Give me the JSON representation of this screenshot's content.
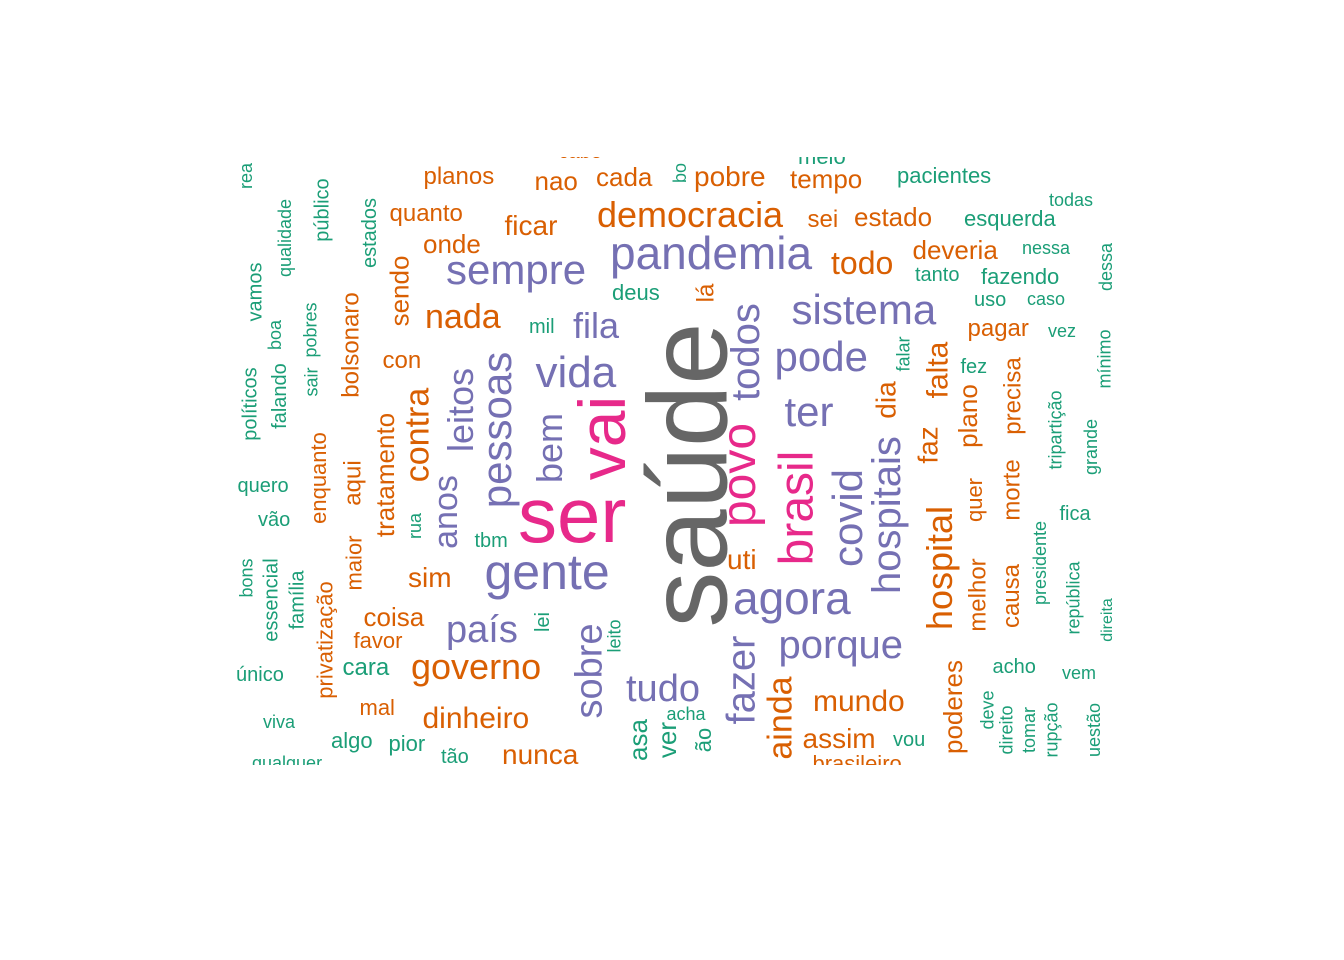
{
  "palette": {
    "gray": "#666666",
    "pink": "#e7298a",
    "purple": "#7570b3",
    "orange": "#d95f02",
    "teal": "#1b9e77"
  },
  "words": [
    {
      "text": "saúde",
      "color": "gray",
      "rank": 1
    },
    {
      "text": "ser",
      "color": "pink",
      "rank": 2
    },
    {
      "text": "vai",
      "color": "pink",
      "rank": 3
    },
    {
      "text": "povo",
      "color": "pink",
      "rank": 4
    },
    {
      "text": "brasil",
      "color": "pink",
      "rank": 5
    },
    {
      "text": "gente",
      "color": "purple",
      "rank": 6
    },
    {
      "text": "agora",
      "color": "purple",
      "rank": 7
    },
    {
      "text": "pandemia",
      "color": "purple",
      "rank": 8
    },
    {
      "text": "sempre",
      "color": "purple",
      "rank": 9
    },
    {
      "text": "pessoas",
      "color": "purple",
      "rank": 10
    },
    {
      "text": "vida",
      "color": "purple",
      "rank": 11
    },
    {
      "text": "sistema",
      "color": "purple",
      "rank": 12
    },
    {
      "text": "pode",
      "color": "purple",
      "rank": 13
    },
    {
      "text": "todos",
      "color": "purple",
      "rank": 14
    },
    {
      "text": "ter",
      "color": "purple",
      "rank": 15
    },
    {
      "text": "porque",
      "color": "purple",
      "rank": 16
    },
    {
      "text": "hospitais",
      "color": "purple",
      "rank": 17
    },
    {
      "text": "covid",
      "color": "purple",
      "rank": 18
    },
    {
      "text": "fazer",
      "color": "purple",
      "rank": 19
    },
    {
      "text": "sobre",
      "color": "purple",
      "rank": 20
    },
    {
      "text": "tudo",
      "color": "purple",
      "rank": 21
    },
    {
      "text": "país",
      "color": "purple",
      "rank": 22
    },
    {
      "text": "leitos",
      "color": "purple",
      "rank": 23
    },
    {
      "text": "anos",
      "color": "purple",
      "rank": 24
    },
    {
      "text": "fila",
      "color": "purple",
      "rank": 25
    },
    {
      "text": "bem",
      "color": "purple",
      "rank": 26
    },
    {
      "text": "democracia",
      "color": "orange",
      "rank": 27
    },
    {
      "text": "governo",
      "color": "orange",
      "rank": 28
    },
    {
      "text": "nada",
      "color": "orange",
      "rank": 29
    },
    {
      "text": "hospital",
      "color": "orange",
      "rank": 30
    },
    {
      "text": "ainda",
      "color": "orange",
      "rank": 31
    },
    {
      "text": "contra",
      "color": "orange",
      "rank": 32
    },
    {
      "text": "dinheiro",
      "color": "orange",
      "rank": 33
    },
    {
      "text": "mundo",
      "color": "orange",
      "rank": 34
    },
    {
      "text": "nunca",
      "color": "orange",
      "rank": 35
    },
    {
      "text": "todo",
      "color": "orange",
      "rank": 36
    },
    {
      "text": "falta",
      "color": "orange",
      "rank": 37
    },
    {
      "text": "faz",
      "color": "orange",
      "rank": 38
    },
    {
      "text": "dia",
      "color": "orange",
      "rank": 39
    },
    {
      "text": "ficar",
      "color": "orange",
      "rank": 40
    },
    {
      "text": "sim",
      "color": "orange",
      "rank": 41
    },
    {
      "text": "coisa",
      "color": "orange",
      "rank": 42
    },
    {
      "text": "pobre",
      "color": "orange",
      "rank": 43
    },
    {
      "text": "tempo",
      "color": "orange",
      "rank": 44
    },
    {
      "text": "cada",
      "color": "orange",
      "rank": 45
    },
    {
      "text": "nao",
      "color": "orange",
      "rank": 46
    },
    {
      "text": "planos",
      "color": "orange",
      "rank": 47
    },
    {
      "text": "estado",
      "color": "orange",
      "rank": 48
    },
    {
      "text": "sei",
      "color": "orange",
      "rank": 49
    },
    {
      "text": "deveria",
      "color": "orange",
      "rank": 50
    },
    {
      "text": "pagar",
      "color": "orange",
      "rank": 51
    },
    {
      "text": "plano",
      "color": "orange",
      "rank": 52
    },
    {
      "text": "precisa",
      "color": "orange",
      "rank": 53
    },
    {
      "text": "morte",
      "color": "orange",
      "rank": 54
    },
    {
      "text": "causa",
      "color": "orange",
      "rank": 55
    },
    {
      "text": "melhor",
      "color": "orange",
      "rank": 56
    },
    {
      "text": "quer",
      "color": "orange",
      "rank": 57
    },
    {
      "text": "poderes",
      "color": "orange",
      "rank": 58
    },
    {
      "text": "assim",
      "color": "orange",
      "rank": 59
    },
    {
      "text": "uti",
      "color": "orange",
      "rank": 60
    },
    {
      "text": "onde",
      "color": "orange",
      "rank": 61
    },
    {
      "text": "quanto",
      "color": "orange",
      "rank": 62
    },
    {
      "text": "sendo",
      "color": "orange",
      "rank": 63
    },
    {
      "text": "con",
      "color": "orange",
      "rank": 64
    },
    {
      "text": "tratamento",
      "color": "orange",
      "rank": 65
    },
    {
      "text": "bolsonaro",
      "color": "orange",
      "rank": 66
    },
    {
      "text": "aqui",
      "color": "orange",
      "rank": 67
    },
    {
      "text": "maior",
      "color": "orange",
      "rank": 68
    },
    {
      "text": "enquanto",
      "color": "orange",
      "rank": 69
    },
    {
      "text": "privatização",
      "color": "orange",
      "rank": 70
    },
    {
      "text": "favor",
      "color": "orange",
      "rank": 71
    },
    {
      "text": "mal",
      "color": "orange",
      "rank": 72
    },
    {
      "text": "lá",
      "color": "orange",
      "rank": 73
    },
    {
      "text": "pacientes",
      "color": "teal",
      "rank": 74
    },
    {
      "text": "esquerda",
      "color": "teal",
      "rank": 75
    },
    {
      "text": "todas",
      "color": "teal",
      "rank": 76
    },
    {
      "text": "nessa",
      "color": "teal",
      "rank": 77
    },
    {
      "text": "fazendo",
      "color": "teal",
      "rank": 78
    },
    {
      "text": "tanto",
      "color": "teal",
      "rank": 79
    },
    {
      "text": "uso",
      "color": "teal",
      "rank": 80
    },
    {
      "text": "caso",
      "color": "teal",
      "rank": 81
    },
    {
      "text": "vez",
      "color": "teal",
      "rank": 82
    },
    {
      "text": "fez",
      "color": "teal",
      "rank": 83
    },
    {
      "text": "falar",
      "color": "teal",
      "rank": 84
    },
    {
      "text": "tripartição",
      "color": "teal",
      "rank": 85
    },
    {
      "text": "grande",
      "color": "teal",
      "rank": 86
    },
    {
      "text": "mínimo",
      "color": "teal",
      "rank": 87
    },
    {
      "text": "dessa",
      "color": "teal",
      "rank": 88
    },
    {
      "text": "fica",
      "color": "teal",
      "rank": 89
    },
    {
      "text": "presidente",
      "color": "teal",
      "rank": 90
    },
    {
      "text": "república",
      "color": "teal",
      "rank": 91
    },
    {
      "text": "direita",
      "color": "teal",
      "rank": 92
    },
    {
      "text": "acho",
      "color": "teal",
      "rank": 93
    },
    {
      "text": "vem",
      "color": "teal",
      "rank": 94
    },
    {
      "text": "deve",
      "color": "teal",
      "rank": 95
    },
    {
      "text": "direito",
      "color": "teal",
      "rank": 96
    },
    {
      "text": "tomar",
      "color": "teal",
      "rank": 97
    },
    {
      "text": "rupção",
      "color": "teal",
      "rank": 98
    },
    {
      "text": "uestão",
      "color": "teal",
      "rank": 99
    },
    {
      "text": "vou",
      "color": "teal",
      "rank": 100
    },
    {
      "text": "acha",
      "color": "teal",
      "rank": 101
    },
    {
      "text": "ão",
      "color": "teal",
      "rank": 102
    },
    {
      "text": "ver",
      "color": "teal",
      "rank": 103
    },
    {
      "text": "asa",
      "color": "teal",
      "rank": 104
    },
    {
      "text": "leito",
      "color": "teal",
      "rank": 105
    },
    {
      "text": "lei",
      "color": "teal",
      "rank": 106
    },
    {
      "text": "tbm",
      "color": "teal",
      "rank": 107
    },
    {
      "text": "rua",
      "color": "teal",
      "rank": 108
    },
    {
      "text": "mil",
      "color": "teal",
      "rank": 109
    },
    {
      "text": "deus",
      "color": "teal",
      "rank": 110
    },
    {
      "text": "bo",
      "color": "teal",
      "rank": 111
    },
    {
      "text": "meio",
      "color": "teal",
      "rank": 112
    },
    {
      "text": "cabe",
      "color": "orange",
      "rank": 113
    },
    {
      "text": "cara",
      "color": "teal",
      "rank": 114
    },
    {
      "text": "algo",
      "color": "teal",
      "rank": 115
    },
    {
      "text": "pior",
      "color": "teal",
      "rank": 116
    },
    {
      "text": "tão",
      "color": "teal",
      "rank": 117
    },
    {
      "text": "estados",
      "color": "teal",
      "rank": 118
    },
    {
      "text": "público",
      "color": "teal",
      "rank": 119
    },
    {
      "text": "qualidade",
      "color": "teal",
      "rank": 120
    },
    {
      "text": "boa",
      "color": "teal",
      "rank": 121
    },
    {
      "text": "pobres",
      "color": "teal",
      "rank": 122
    },
    {
      "text": "sair",
      "color": "teal",
      "rank": 123
    },
    {
      "text": "falando",
      "color": "teal",
      "rank": 124
    },
    {
      "text": "vamos",
      "color": "teal",
      "rank": 125
    },
    {
      "text": "políticos",
      "color": "teal",
      "rank": 126
    },
    {
      "text": "rea",
      "color": "teal",
      "rank": 127
    },
    {
      "text": "quero",
      "color": "teal",
      "rank": 128
    },
    {
      "text": "vão",
      "color": "teal",
      "rank": 129
    },
    {
      "text": "bons",
      "color": "teal",
      "rank": 130
    },
    {
      "text": "essencial",
      "color": "teal",
      "rank": 131
    },
    {
      "text": "família",
      "color": "teal",
      "rank": 132
    },
    {
      "text": "único",
      "color": "teal",
      "rank": 133
    },
    {
      "text": "viva",
      "color": "teal",
      "rank": 134
    },
    {
      "text": "qualquer",
      "color": "teal",
      "rank": 135
    },
    {
      "text": "brasileiro",
      "color": "orange",
      "rank": 136
    }
  ]
}
